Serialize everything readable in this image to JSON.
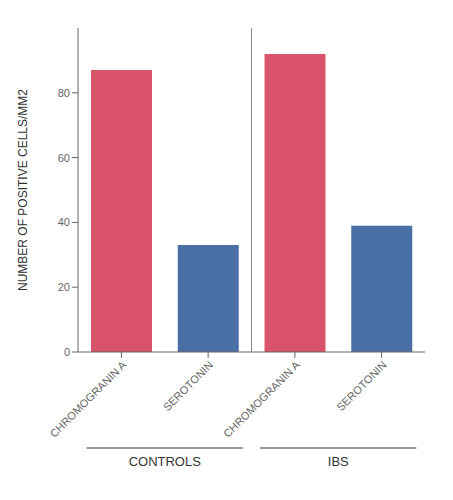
{
  "chart_data": {
    "type": "bar",
    "categories": [
      "CHROMOGRANIN A",
      "SEROTONIN",
      "CHROMOGRANIN A",
      "SEROTONIN"
    ],
    "groups": [
      "CONTROLS",
      "CONTROLS",
      "IBS",
      "IBS"
    ],
    "values": [
      87,
      33,
      92,
      39
    ],
    "colors": [
      "#d9536a",
      "#4a6fa5",
      "#d9536a",
      "#4a6fa5"
    ],
    "ylabel": "NUMBER OF POSITIVE CELLS/MM2",
    "ylim": [
      0,
      100
    ],
    "yticks": [
      0,
      20,
      40,
      60,
      80
    ],
    "grid": false
  }
}
